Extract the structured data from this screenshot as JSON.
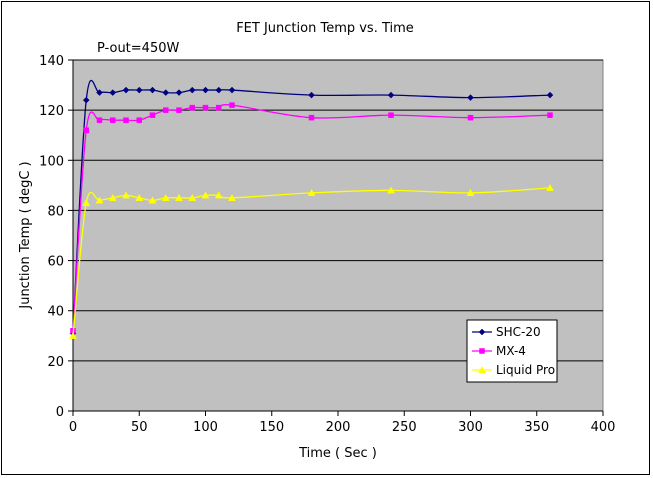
{
  "chart_data": {
    "type": "line",
    "title": "FET Junction Temp vs. Time",
    "annotation": "P-out=450W",
    "xlabel": "Time ( Sec )",
    "ylabel": "Junction Temp ( degC )",
    "xlim": [
      0,
      400
    ],
    "ylim": [
      0,
      140
    ],
    "x_ticks": [
      0,
      50,
      100,
      150,
      200,
      250,
      300,
      350,
      400
    ],
    "y_ticks": [
      0,
      20,
      40,
      60,
      80,
      100,
      120,
      140
    ],
    "grid": true,
    "plot_background": "#c0c0c0",
    "legend_position": "bottom-right",
    "series": [
      {
        "name": "SHC-20",
        "color": "#000080",
        "marker": "diamond",
        "x": [
          0,
          10,
          20,
          30,
          40,
          50,
          60,
          70,
          80,
          90,
          100,
          110,
          120,
          180,
          240,
          300,
          360
        ],
        "y": [
          31,
          124,
          127,
          127,
          128,
          128,
          128,
          127,
          127,
          128,
          128,
          128,
          128,
          126,
          126,
          125,
          126
        ]
      },
      {
        "name": "MX-4",
        "color": "#ff00ff",
        "marker": "square",
        "x": [
          0,
          10,
          20,
          30,
          40,
          50,
          60,
          70,
          80,
          90,
          100,
          110,
          120,
          180,
          240,
          300,
          360
        ],
        "y": [
          32,
          112,
          116,
          116,
          116,
          116,
          118,
          120,
          120,
          121,
          121,
          121,
          122,
          117,
          118,
          117,
          118
        ]
      },
      {
        "name": "Liquid Pro",
        "color": "#ffff00",
        "marker": "triangle",
        "x": [
          0,
          10,
          20,
          30,
          40,
          50,
          60,
          70,
          80,
          90,
          100,
          110,
          120,
          180,
          240,
          300,
          360
        ],
        "y": [
          30,
          83,
          84,
          85,
          86,
          85,
          84,
          85,
          85,
          85,
          86,
          86,
          85,
          87,
          88,
          87,
          89
        ]
      }
    ]
  }
}
